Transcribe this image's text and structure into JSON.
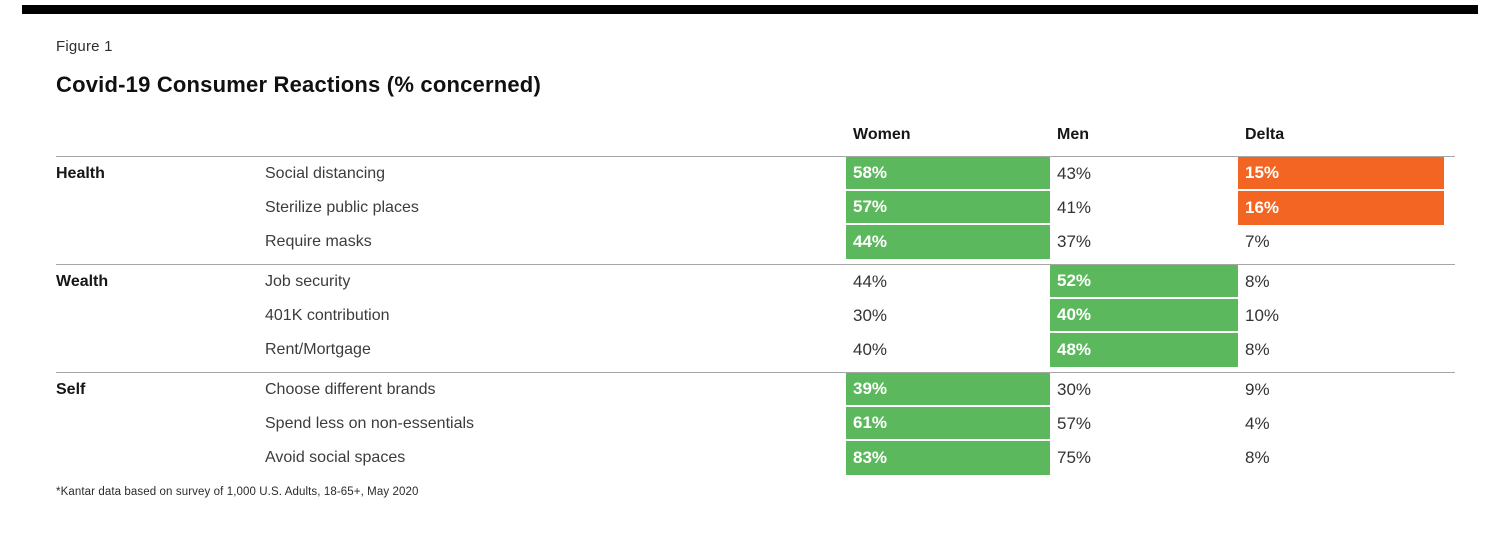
{
  "figure_label": "Figure 1",
  "title": "Covid-19 Consumer Reactions (% concerned)",
  "footnote": "*Kantar data based on survey of 1,000 U.S. Adults, 18-65+, May 2020",
  "colors": {
    "highlight_green": "#5cb85c",
    "highlight_orange": "#f26522",
    "rule_gray": "#a6a6a6",
    "top_bar_black": "#000000"
  },
  "chart_data": {
    "type": "table",
    "title": "Covid-19 Consumer Reactions (% concerned)",
    "columns": [
      "Women",
      "Men",
      "Delta"
    ],
    "highlight_legend": "green = higher-concern gender cell, orange = notable delta",
    "sections": [
      {
        "category": "Health",
        "rows": [
          {
            "item": "Social distancing",
            "women": "58%",
            "men": "43%",
            "delta": "15%",
            "highlight": "women",
            "delta_highlight": true
          },
          {
            "item": "Sterilize public places",
            "women": "57%",
            "men": "41%",
            "delta": "16%",
            "highlight": "women",
            "delta_highlight": true
          },
          {
            "item": "Require masks",
            "women": "44%",
            "men": "37%",
            "delta": "7%",
            "highlight": "women",
            "delta_highlight": false
          }
        ]
      },
      {
        "category": "Wealth",
        "rows": [
          {
            "item": "Job security",
            "women": "44%",
            "men": "52%",
            "delta": "8%",
            "highlight": "men",
            "delta_highlight": false
          },
          {
            "item": "401K contribution",
            "women": "30%",
            "men": "40%",
            "delta": "10%",
            "highlight": "men",
            "delta_highlight": false
          },
          {
            "item": "Rent/Mortgage",
            "women": "40%",
            "men": "48%",
            "delta": "8%",
            "highlight": "men",
            "delta_highlight": false
          }
        ]
      },
      {
        "category": "Self",
        "rows": [
          {
            "item": "Choose different brands",
            "women": "39%",
            "men": "30%",
            "delta": "9%",
            "highlight": "women",
            "delta_highlight": false
          },
          {
            "item": "Spend less on non-essentials",
            "women": "61%",
            "men": "57%",
            "delta": "4%",
            "highlight": "women",
            "delta_highlight": false
          },
          {
            "item": "Avoid social spaces",
            "women": "83%",
            "men": "75%",
            "delta": "8%",
            "highlight": "women",
            "delta_highlight": false
          }
        ]
      }
    ]
  }
}
